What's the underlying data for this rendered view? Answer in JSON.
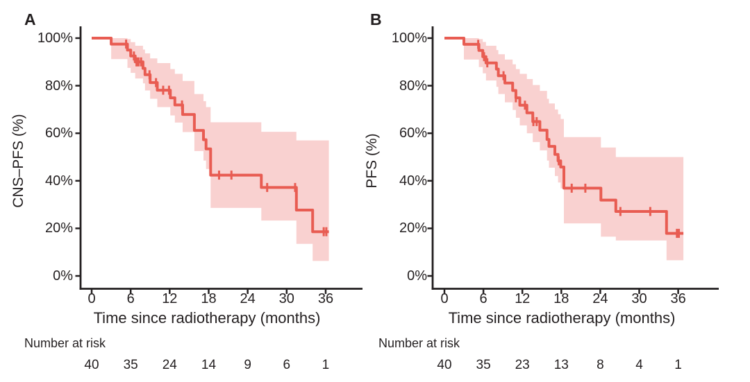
{
  "figure": {
    "background": "#ffffff",
    "text_color": "#231f20",
    "curve_color": "#e85c52",
    "band_color": "#f9d1d0",
    "axis_color": "#231f20"
  },
  "chart_data": [
    {
      "type": "line",
      "subtype": "kaplan-meier-step",
      "panel": "A",
      "title": "A",
      "ylabel": "CNS–PFS (%)",
      "xlabel": "Time since radiotherapy (months)",
      "xlim": [
        0,
        42
      ],
      "ylim": [
        0,
        100
      ],
      "grid": false,
      "legend": "none",
      "x_ticks": [
        0,
        6,
        12,
        18,
        24,
        30,
        36
      ],
      "y_ticks": {
        "values": [
          100,
          80,
          60,
          40,
          20,
          0
        ],
        "labels": [
          "100%",
          "80%",
          "60%",
          "40%",
          "20%",
          "0%"
        ]
      },
      "steps": [
        [
          0,
          100
        ],
        [
          3.0,
          97.5
        ],
        [
          5.5,
          95
        ],
        [
          6.0,
          92.5
        ],
        [
          6.7,
          90
        ],
        [
          7.9,
          87.3
        ],
        [
          8.2,
          84.6
        ],
        [
          9.0,
          81.3
        ],
        [
          10.1,
          78.1
        ],
        [
          12.1,
          74.9
        ],
        [
          12.8,
          71.9
        ],
        [
          14.0,
          67.9
        ],
        [
          15.8,
          61.2
        ],
        [
          17.2,
          57.3
        ],
        [
          17.6,
          53.4
        ],
        [
          18.3,
          42.4
        ],
        [
          26.1,
          37.2
        ],
        [
          31.5,
          27.7
        ],
        [
          34.0,
          18.6
        ]
      ],
      "end_time": 36.5,
      "censor_times": [
        5.3,
        6.5,
        6.9,
        7.2,
        7.6,
        8.9,
        9.9,
        11.0,
        11.9,
        13.9,
        19.6,
        21.5,
        27.0,
        31.3,
        35.7,
        36.1
      ],
      "band": [
        [
          3.0,
          100,
          91.2
        ],
        [
          5.5,
          99.6,
          87.5
        ],
        [
          6.0,
          98.3,
          85.4
        ],
        [
          6.7,
          96.8,
          83.0
        ],
        [
          7.9,
          95.2,
          81.0
        ],
        [
          8.2,
          93.6,
          78.0
        ],
        [
          9.0,
          91.5,
          74.5
        ],
        [
          10.1,
          89.5,
          71.0
        ],
        [
          12.1,
          87.0,
          67.5
        ],
        [
          12.8,
          85.0,
          64.5
        ],
        [
          14.0,
          82.0,
          60.5
        ],
        [
          15.8,
          76.5,
          52.5
        ],
        [
          17.2,
          73.5,
          48.5
        ],
        [
          17.6,
          71.0,
          45.0
        ],
        [
          18.3,
          64.6,
          28.6
        ],
        [
          26.1,
          60.6,
          23.3
        ],
        [
          31.5,
          57.0,
          13.5
        ],
        [
          34.0,
          57.0,
          6.3
        ]
      ],
      "number_at_risk": {
        "label": "Number at risk",
        "times": [
          0,
          6,
          12,
          18,
          24,
          30,
          36
        ],
        "counts": [
          40,
          35,
          24,
          14,
          9,
          6,
          1
        ]
      }
    },
    {
      "type": "line",
      "subtype": "kaplan-meier-step",
      "panel": "B",
      "title": "B",
      "ylabel": "PFS (%)",
      "xlabel": "Time since radiotherapy (months)",
      "xlim": [
        0,
        42
      ],
      "ylim": [
        0,
        100
      ],
      "grid": false,
      "legend": "none",
      "x_ticks": [
        0,
        6,
        12,
        18,
        24,
        30,
        36
      ],
      "y_ticks": {
        "values": [
          100,
          80,
          60,
          40,
          20,
          0
        ],
        "labels": [
          "100%",
          "80%",
          "60%",
          "40%",
          "20%",
          "0%"
        ]
      },
      "steps": [
        [
          0,
          100
        ],
        [
          3.0,
          97.4
        ],
        [
          5.3,
          94.8
        ],
        [
          5.9,
          92.2
        ],
        [
          6.4,
          89.6
        ],
        [
          8.0,
          87.0
        ],
        [
          8.3,
          84.2
        ],
        [
          9.3,
          81.1
        ],
        [
          10.5,
          78.0
        ],
        [
          11.0,
          74.9
        ],
        [
          11.6,
          71.8
        ],
        [
          12.7,
          68.6
        ],
        [
          13.6,
          64.9
        ],
        [
          14.7,
          61.3
        ],
        [
          15.8,
          57.4
        ],
        [
          16.1,
          54.5
        ],
        [
          17.0,
          51.1
        ],
        [
          17.5,
          48.4
        ],
        [
          17.9,
          45.8
        ],
        [
          18.4,
          36.9
        ],
        [
          24.1,
          31.9
        ],
        [
          26.4,
          27.1
        ],
        [
          34.2,
          17.9
        ]
      ],
      "end_time": 36.8,
      "censor_times": [
        5.2,
        6.1,
        6.6,
        9.1,
        11.0,
        12.4,
        13.7,
        14.2,
        17.6,
        19.6,
        21.7,
        27.1,
        31.7,
        35.8,
        36.1
      ],
      "band": [
        [
          3.0,
          100,
          91.0
        ],
        [
          5.3,
          99.6,
          87.8
        ],
        [
          5.9,
          98.4,
          85.2
        ],
        [
          6.4,
          96.8,
          82.2
        ],
        [
          8.0,
          95.0,
          79.5
        ],
        [
          8.3,
          93.2,
          76.5
        ],
        [
          9.3,
          91.0,
          73.0
        ],
        [
          10.5,
          89.0,
          69.8
        ],
        [
          11.0,
          87.0,
          66.5
        ],
        [
          11.6,
          85.0,
          63.3
        ],
        [
          12.7,
          82.8,
          60.0
        ],
        [
          13.6,
          80.3,
          56.3
        ],
        [
          14.7,
          77.8,
          52.8
        ],
        [
          15.8,
          74.5,
          48.5
        ],
        [
          16.1,
          72.5,
          45.5
        ],
        [
          17.0,
          70.0,
          42.0
        ],
        [
          17.5,
          68.0,
          39.3
        ],
        [
          17.9,
          66.0,
          36.8
        ],
        [
          18.4,
          58.4,
          22.1
        ],
        [
          24.1,
          54.0,
          16.5
        ],
        [
          26.4,
          50.0,
          14.9
        ],
        [
          34.2,
          50.0,
          6.6
        ]
      ],
      "number_at_risk": {
        "label": "Number at risk",
        "times": [
          0,
          6,
          12,
          18,
          24,
          30,
          36
        ],
        "counts": [
          40,
          35,
          23,
          13,
          8,
          4,
          1
        ]
      }
    }
  ]
}
